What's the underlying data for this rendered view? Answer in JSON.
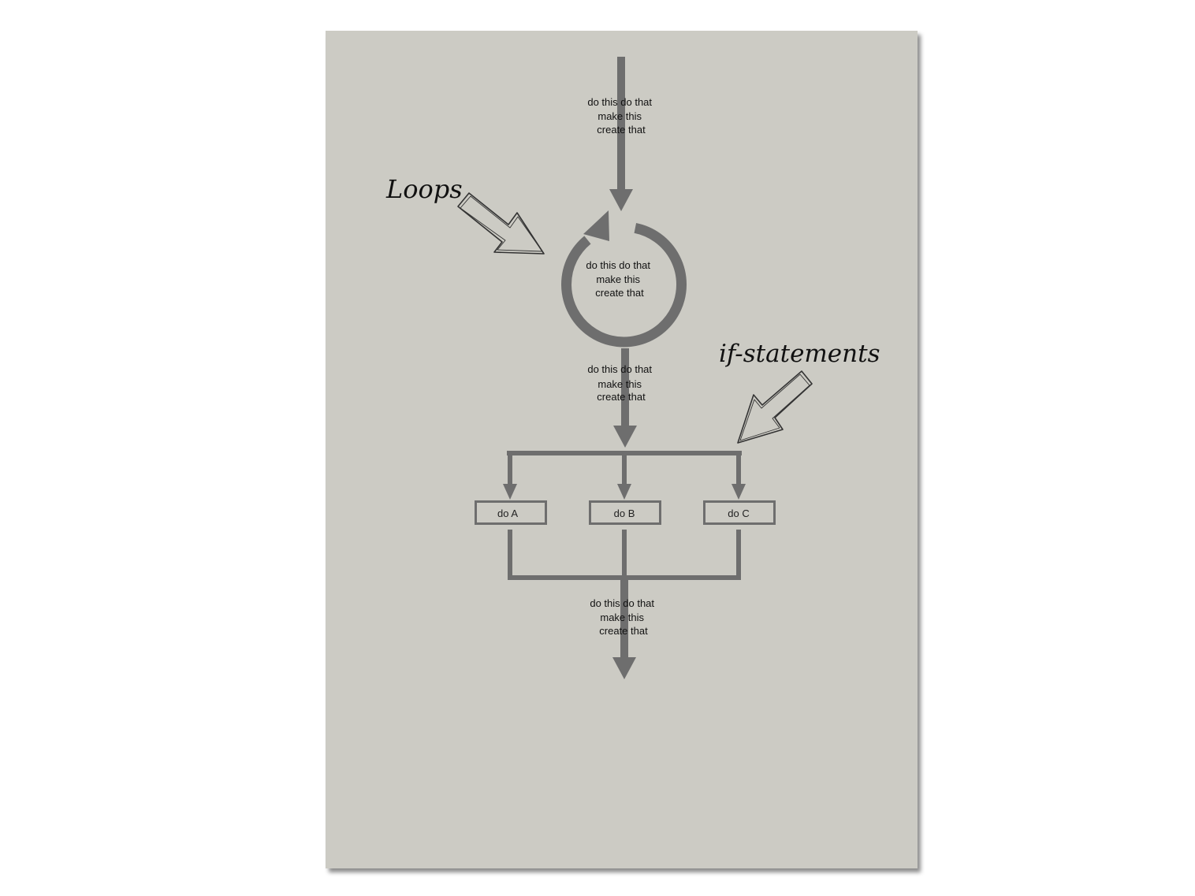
{
  "annotations": {
    "loops": "Loops",
    "if_statements": "if-statements"
  },
  "steps": {
    "top": [
      "do this do that",
      "make this",
      "create that"
    ],
    "loop": [
      "do this do that",
      "make this",
      "create that"
    ],
    "middle": [
      "do this do that",
      "make this",
      "create that"
    ],
    "bottom": [
      "do this do that",
      "make this",
      "create that"
    ]
  },
  "branches": [
    "do A",
    "do B",
    "do C"
  ],
  "colors": {
    "paper": "#cccbc4",
    "flow": "#6e6e6e",
    "ink": "#111111"
  }
}
